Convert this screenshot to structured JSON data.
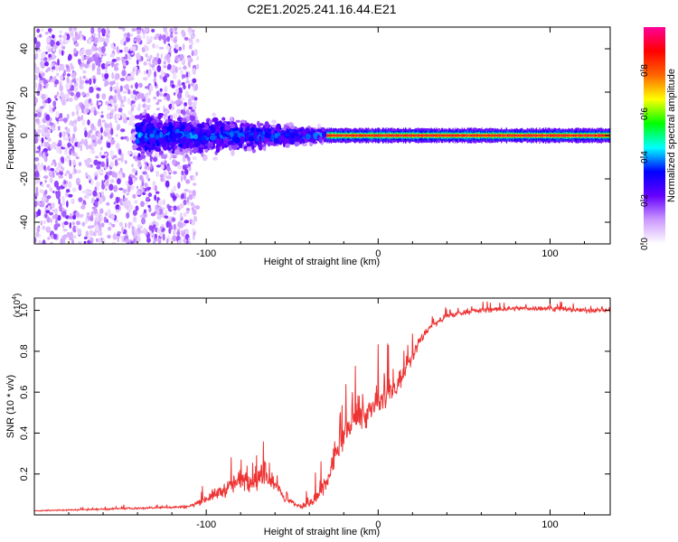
{
  "title": "C2E1.2025.241.16.44.E21",
  "chart_data": [
    {
      "type": "heatmap",
      "name": "spectrogram",
      "xlabel": "Height of straight line (km)",
      "ylabel": "Frequency (Hz)",
      "xlim": [
        -200,
        135
      ],
      "ylim": [
        -50,
        50
      ],
      "xticks": [
        -100,
        0,
        100
      ],
      "yticks": [
        -40,
        -20,
        0,
        20,
        40
      ],
      "colorbar": {
        "label": "Normalized spectral amplitude",
        "range": [
          0,
          1
        ],
        "ticks": [
          "0.0",
          "0.2",
          "0.4",
          "0.6",
          "0.8"
        ],
        "tick_values": [
          0.0,
          0.2,
          0.4,
          0.6,
          0.8
        ],
        "colors": [
          "#ffffff",
          "#cc99ff",
          "#6600ff",
          "#0000ff",
          "#00ffff",
          "#00ff00",
          "#ffff00",
          "#ff6600",
          "#ff0000",
          "#ff0099"
        ]
      },
      "features": [
        {
          "desc": "sparse noise",
          "x": [
            -200,
            -105
          ],
          "freq_spread": 50,
          "amplitude": 0.15
        },
        {
          "desc": "broadening signal",
          "x": [
            -140,
            -30
          ],
          "freq_center": 0,
          "freq_spread_range": [
            12,
            3
          ],
          "amplitude": 0.35
        },
        {
          "desc": "narrow carrier",
          "x": [
            -30,
            135
          ],
          "freq_center": 0,
          "freq_spread": 1.5,
          "amplitude": 0.9
        }
      ]
    },
    {
      "type": "line",
      "name": "snr",
      "xlabel": "Height of straight line (km)",
      "ylabel": "SNR (10 * v/v)",
      "multiplier_label": "(x10",
      "multiplier_exp": "4",
      "multiplier_close": ")",
      "xlim": [
        -200,
        135
      ],
      "ylim": [
        0,
        1.06
      ],
      "xticks": [
        -100,
        0,
        100
      ],
      "yticks": [
        "0.2",
        "0.4",
        "0.6",
        "0.8",
        "1.0"
      ],
      "ytick_values": [
        0.2,
        0.4,
        0.6,
        0.8,
        1.0
      ],
      "color": "#ee3333",
      "envelope_x": [
        -200,
        -150,
        -110,
        -100,
        -90,
        -80,
        -72,
        -66,
        -60,
        -55,
        -45,
        -38,
        -30,
        -25,
        -20,
        -15,
        -10,
        -5,
        0,
        5,
        10,
        15,
        20,
        25,
        30,
        40,
        50,
        60,
        80,
        100,
        120,
        135
      ],
      "envelope_y": [
        0.02,
        0.03,
        0.04,
        0.08,
        0.12,
        0.17,
        0.18,
        0.18,
        0.16,
        0.08,
        0.04,
        0.06,
        0.15,
        0.3,
        0.38,
        0.45,
        0.48,
        0.5,
        0.55,
        0.58,
        0.62,
        0.7,
        0.78,
        0.86,
        0.92,
        0.97,
        0.99,
        1.0,
        1.01,
        1.01,
        1.0,
        1.0
      ],
      "noise": [
        0.005,
        0.008,
        0.01,
        0.04,
        0.06,
        0.1,
        0.12,
        0.1,
        0.06,
        0.03,
        0.02,
        0.05,
        0.09,
        0.12,
        0.12,
        0.12,
        0.12,
        0.12,
        0.12,
        0.12,
        0.1,
        0.08,
        0.06,
        0.04,
        0.03,
        0.02,
        0.02,
        0.02,
        0.02,
        0.02,
        0.02,
        0.02
      ]
    }
  ]
}
